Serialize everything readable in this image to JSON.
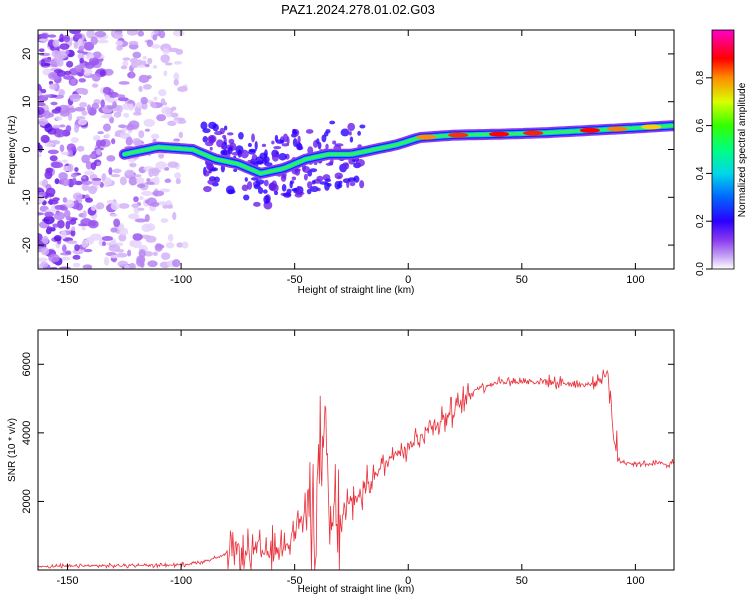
{
  "title": "PAZ1.2024.278.01.02.G03",
  "colors": {
    "snr_line": "#e8323c",
    "axis": "#000000",
    "background": "#ffffff"
  },
  "chart_data": [
    {
      "type": "heatmap",
      "name": "spectrogram",
      "xlabel": "Height of straight line (km)",
      "ylabel": "Frequency (Hz)",
      "xlim": [
        -163,
        117
      ],
      "ylim": [
        -25,
        25
      ],
      "xticks": [
        -150,
        -100,
        -50,
        0,
        50,
        100
      ],
      "yticks": [
        -20,
        -10,
        0,
        10,
        20
      ],
      "colorbar": {
        "label": "Normalized spectral amplitude",
        "range": [
          0,
          1
        ],
        "ticks": [
          0.0,
          0.2,
          0.4,
          0.6,
          0.8
        ],
        "colormap": "rainbow (violet to red to magenta)"
      },
      "ridge": [
        {
          "x": -125,
          "y": -1
        },
        {
          "x": -110,
          "y": 0.5
        },
        {
          "x": -95,
          "y": 0
        },
        {
          "x": -85,
          "y": -2
        },
        {
          "x": -75,
          "y": -3
        },
        {
          "x": -65,
          "y": -5
        },
        {
          "x": -55,
          "y": -4
        },
        {
          "x": -45,
          "y": -2
        },
        {
          "x": -35,
          "y": -1
        },
        {
          "x": -25,
          "y": -1
        },
        {
          "x": -15,
          "y": 0
        },
        {
          "x": -5,
          "y": 1
        },
        {
          "x": 5,
          "y": 2.5
        },
        {
          "x": 20,
          "y": 3
        },
        {
          "x": 40,
          "y": 3.2
        },
        {
          "x": 60,
          "y": 3.5
        },
        {
          "x": 80,
          "y": 4
        },
        {
          "x": 100,
          "y": 4.5
        },
        {
          "x": 117,
          "y": 5
        }
      ]
    },
    {
      "type": "line",
      "name": "snr",
      "xlabel": "Height of straight line (km)",
      "ylabel": "SNR (10 * v/v)",
      "xlim": [
        -163,
        117
      ],
      "ylim": [
        0,
        7000
      ],
      "xticks": [
        -150,
        -100,
        -50,
        0,
        50,
        100
      ],
      "yticks": [
        2000,
        4000,
        6000
      ],
      "x": [
        -163,
        -140,
        -120,
        -100,
        -90,
        -80,
        -70,
        -60,
        -55,
        -50,
        -45,
        -40,
        -37,
        -35,
        -30,
        -25,
        -20,
        -15,
        -10,
        -5,
        0,
        5,
        10,
        20,
        30,
        40,
        50,
        60,
        70,
        80,
        85,
        88,
        90,
        92,
        95,
        100,
        110,
        117
      ],
      "y": [
        100,
        120,
        130,
        150,
        250,
        450,
        500,
        500,
        700,
        1200,
        1600,
        2200,
        4000,
        1300,
        1400,
        2000,
        2300,
        2800,
        3100,
        3500,
        3600,
        3900,
        4200,
        4600,
        5300,
        5500,
        5500,
        5500,
        5450,
        5400,
        5600,
        5800,
        4200,
        3200,
        3150,
        3100,
        3100,
        3100
      ]
    }
  ]
}
